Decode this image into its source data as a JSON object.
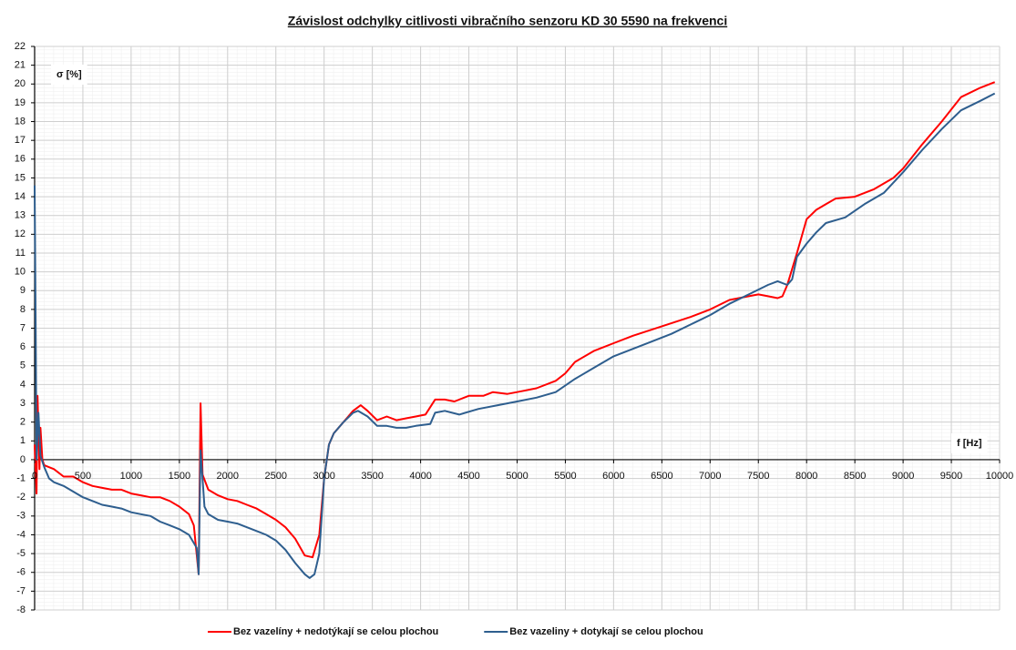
{
  "chart_data": {
    "type": "line",
    "title": "Závislost odchylky citlivosti vibračního senzoru KD 30 5590 na frekvenci",
    "y_label": "σ [%]",
    "x_label": "f [Hz]",
    "xlim": [
      0,
      10000
    ],
    "ylim": [
      -8,
      22
    ],
    "xticks": [
      0,
      500,
      1000,
      1500,
      2000,
      2500,
      3000,
      3500,
      4000,
      4500,
      5000,
      5500,
      6000,
      6500,
      7000,
      7500,
      8000,
      8500,
      9000,
      9500,
      10000
    ],
    "yticks": [
      -8,
      -7,
      -6,
      -5,
      -4,
      -3,
      -2,
      -1,
      0,
      1,
      2,
      3,
      4,
      5,
      6,
      7,
      8,
      9,
      10,
      11,
      12,
      13,
      14,
      15,
      16,
      17,
      18,
      19,
      20,
      21,
      22
    ],
    "grid": true,
    "legend": "bottom",
    "series": [
      {
        "name": "Bez vazelíny + nedotýkají se celou plochou",
        "color": "#ff0000",
        "x": [
          0,
          20,
          30,
          50,
          60,
          80,
          100,
          200,
          300,
          400,
          500,
          600,
          700,
          800,
          900,
          1000,
          1100,
          1200,
          1300,
          1400,
          1500,
          1600,
          1650,
          1700,
          1720,
          1740,
          1800,
          1900,
          2000,
          2100,
          2200,
          2300,
          2400,
          2500,
          2600,
          2700,
          2800,
          2880,
          2950,
          3000,
          3050,
          3100,
          3200,
          3300,
          3380,
          3450,
          3550,
          3650,
          3750,
          3850,
          3950,
          4050,
          4150,
          4250,
          4350,
          4500,
          4650,
          4750,
          4900,
          5000,
          5200,
          5400,
          5500,
          5600,
          5800,
          6000,
          6200,
          6500,
          6800,
          7000,
          7200,
          7400,
          7500,
          7600,
          7700,
          7750,
          7800,
          7900,
          8000,
          8100,
          8200,
          8300,
          8500,
          8700,
          8900,
          9000,
          9200,
          9400,
          9600,
          9800,
          9950
        ],
        "values": [
          0.8,
          -1.8,
          3.4,
          -0.5,
          1.7,
          0,
          -0.3,
          -0.5,
          -0.9,
          -0.9,
          -1.2,
          -1.4,
          -1.5,
          -1.6,
          -1.6,
          -1.8,
          -1.9,
          -2.0,
          -2.0,
          -2.2,
          -2.5,
          -2.9,
          -3.5,
          -6.1,
          3.0,
          -0.8,
          -1.6,
          -1.9,
          -2.1,
          -2.2,
          -2.4,
          -2.6,
          -2.9,
          -3.2,
          -3.6,
          -4.2,
          -5.1,
          -5.2,
          -4.0,
          -1.0,
          0.8,
          1.4,
          2.0,
          2.6,
          2.9,
          2.6,
          2.1,
          2.3,
          2.1,
          2.2,
          2.3,
          2.4,
          3.2,
          3.2,
          3.1,
          3.4,
          3.4,
          3.6,
          3.5,
          3.6,
          3.8,
          4.2,
          4.6,
          5.2,
          5.8,
          6.2,
          6.6,
          7.1,
          7.6,
          8.0,
          8.5,
          8.7,
          8.8,
          8.7,
          8.6,
          8.7,
          9.3,
          11.0,
          12.8,
          13.3,
          13.6,
          13.9,
          14.0,
          14.4,
          15.0,
          15.5,
          16.8,
          18.0,
          19.3,
          19.8,
          20.1
        ]
      },
      {
        "name": "Bez vazeliny + dotykají se celou plochou",
        "color": "#2e5e8e",
        "x": [
          0,
          10,
          20,
          40,
          60,
          100,
          150,
          200,
          300,
          400,
          500,
          600,
          700,
          800,
          900,
          1000,
          1100,
          1200,
          1300,
          1400,
          1500,
          1600,
          1680,
          1700,
          1720,
          1760,
          1800,
          1900,
          2000,
          2100,
          2200,
          2300,
          2400,
          2500,
          2600,
          2700,
          2800,
          2850,
          2900,
          2950,
          3000,
          3050,
          3100,
          3200,
          3300,
          3350,
          3450,
          3550,
          3650,
          3750,
          3850,
          3950,
          4100,
          4150,
          4250,
          4400,
          4600,
          4800,
          5000,
          5200,
          5400,
          5600,
          5800,
          6000,
          6200,
          6400,
          6600,
          6800,
          7000,
          7200,
          7400,
          7600,
          7700,
          7800,
          7850,
          7900,
          8000,
          8100,
          8200,
          8400,
          8600,
          8800,
          9000,
          9200,
          9400,
          9600,
          9800,
          9950
        ],
        "values": [
          14.6,
          7.5,
          0,
          2.5,
          0.2,
          -0.4,
          -1.0,
          -1.2,
          -1.4,
          -1.7,
          -2.0,
          -2.2,
          -2.4,
          -2.5,
          -2.6,
          -2.8,
          -2.9,
          -3.0,
          -3.3,
          -3.5,
          -3.7,
          -4.0,
          -4.7,
          -6.1,
          0.5,
          -2.5,
          -2.9,
          -3.2,
          -3.3,
          -3.4,
          -3.6,
          -3.8,
          -4.0,
          -4.3,
          -4.8,
          -5.5,
          -6.1,
          -6.3,
          -6.1,
          -5.0,
          -1.0,
          0.8,
          1.4,
          2.0,
          2.5,
          2.6,
          2.3,
          1.8,
          1.8,
          1.7,
          1.7,
          1.8,
          1.9,
          2.5,
          2.6,
          2.4,
          2.7,
          2.9,
          3.1,
          3.3,
          3.6,
          4.3,
          4.9,
          5.5,
          5.9,
          6.3,
          6.7,
          7.2,
          7.7,
          8.3,
          8.8,
          9.3,
          9.5,
          9.3,
          9.6,
          10.8,
          11.5,
          12.1,
          12.6,
          12.9,
          13.6,
          14.2,
          15.3,
          16.5,
          17.6,
          18.6,
          19.1,
          19.5
        ]
      }
    ]
  }
}
